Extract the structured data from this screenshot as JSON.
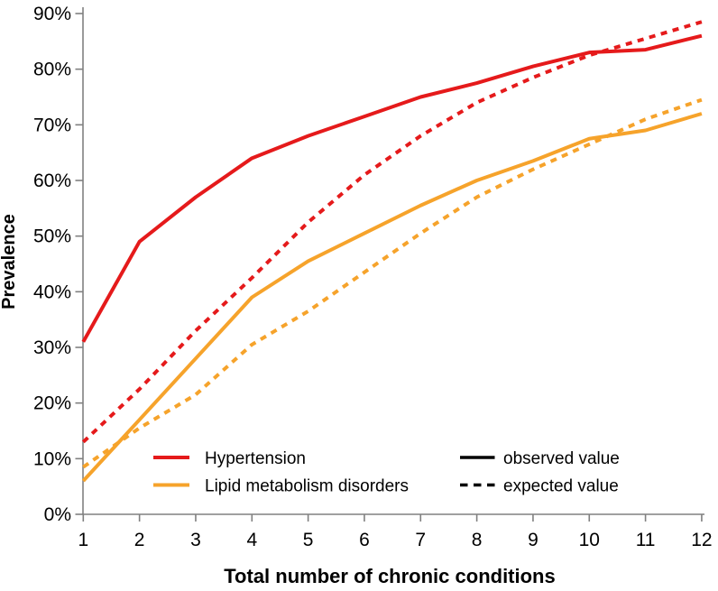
{
  "chart_data": {
    "type": "line",
    "title": "",
    "xlabel": "Total number of chronic conditions",
    "ylabel": "Prevalence",
    "x": [
      1,
      2,
      3,
      4,
      5,
      6,
      7,
      8,
      9,
      10,
      11,
      12
    ],
    "xlim": [
      1,
      12
    ],
    "ylim": [
      0,
      90
    ],
    "grid": false,
    "y_ticks": [
      {
        "value": 0,
        "label": "0%"
      },
      {
        "value": 10,
        "label": "10%"
      },
      {
        "value": 20,
        "label": "20%"
      },
      {
        "value": 30,
        "label": "30%"
      },
      {
        "value": 40,
        "label": "40%"
      },
      {
        "value": 50,
        "label": "50%"
      },
      {
        "value": 60,
        "label": "60%"
      },
      {
        "value": 70,
        "label": "70%"
      },
      {
        "value": 80,
        "label": "80%"
      },
      {
        "value": 90,
        "label": "90%"
      }
    ],
    "series": [
      {
        "name": "Hypertension (expected value)",
        "condition": "Hypertension",
        "kind": "expected",
        "color": "#e51a1b",
        "dashed": true,
        "values": [
          13,
          22.5,
          33,
          42.5,
          52.5,
          61,
          68,
          74,
          78.5,
          82.5,
          85.5,
          88.5
        ]
      },
      {
        "name": "Lipid metabolism disorders (expected value)",
        "condition": "Lipid metabolism disorders",
        "kind": "expected",
        "color": "#f6a32b",
        "dashed": true,
        "values": [
          8.5,
          15.5,
          21.5,
          30.5,
          36.5,
          43.5,
          50.5,
          57,
          62,
          66.5,
          71,
          74.5
        ]
      },
      {
        "name": "Hypertension (observed value)",
        "condition": "Hypertension",
        "kind": "observed",
        "color": "#e51a1b",
        "dashed": false,
        "values": [
          31,
          49,
          57,
          64,
          68,
          71.5,
          75,
          77.5,
          80.5,
          83,
          83.5,
          86
        ]
      },
      {
        "name": "Lipid metabolism disorders (observed value)",
        "condition": "Lipid metabolism disorders",
        "kind": "observed",
        "color": "#f6a32b",
        "dashed": false,
        "values": [
          6,
          17,
          28,
          39,
          45.5,
          50.5,
          55.5,
          60,
          63.5,
          67.5,
          69,
          72
        ]
      }
    ],
    "legend": {
      "position": "inside-bottom",
      "conditions": [
        {
          "label": "Hypertension",
          "color": "#e51a1b"
        },
        {
          "label": "Lipid metabolism disorders",
          "color": "#f6a32b"
        }
      ],
      "styles": [
        {
          "label": "observed value",
          "dashed": false
        },
        {
          "label": "expected value",
          "dashed": true
        }
      ]
    }
  },
  "colors": {
    "red": "#e51a1b",
    "orange": "#f6a32b",
    "axis": "#808080",
    "text": "#000000",
    "background": "#ffffff"
  }
}
